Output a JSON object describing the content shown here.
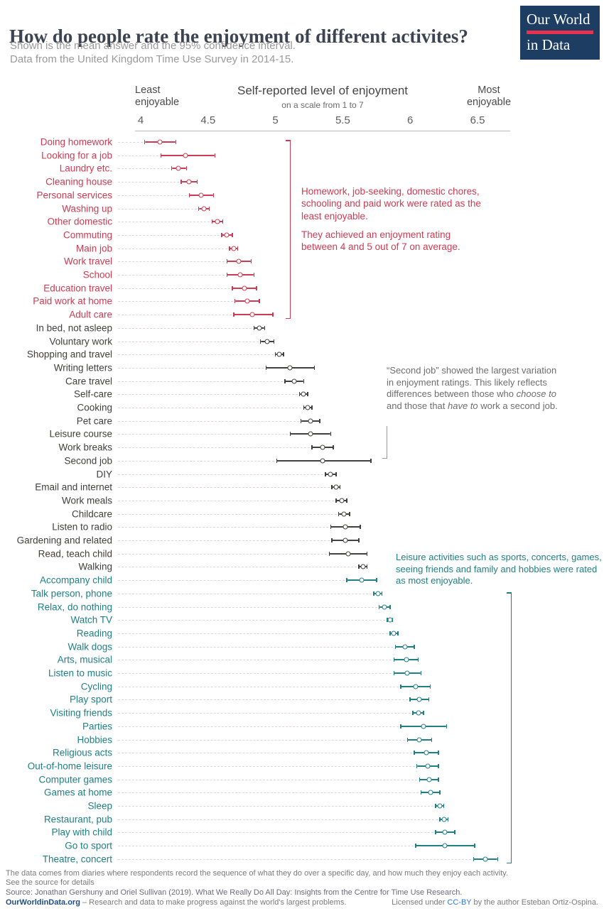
{
  "header": {
    "title": "How do people rate the enjoyment of different activites?",
    "subtitle1": "Shown is the mean answer and the 95% confidence interval.",
    "subtitle2": "Data from the United Kingdom Time Use Survey in 2014-15.",
    "logo_line1": "Our World",
    "logo_line2": "in Data"
  },
  "axis": {
    "title": "Self-reported level of enjoyment",
    "subtitle": "on a scale from 1 to 7",
    "least_line1": "Least",
    "least_line2": "enjoyable",
    "most_line1": "Most",
    "most_line2": "enjoyable",
    "ticks": [
      "4",
      "4.5",
      "5",
      "5.5",
      "6",
      "6.5"
    ],
    "xmin": 4,
    "xmax": 6.8
  },
  "colors": {
    "least": "#cf3b52",
    "mid": "#41403e",
    "most": "#1f7f85",
    "leader_line": "#ddd3e2",
    "logo_bg": "#1d3d63",
    "logo_bar": "#e8304f",
    "annotation_gray": "#6e6e6e"
  },
  "annotations": {
    "least_text1": "Homework, job-seeking, domestic chores, schooling and paid work were rated as the least enjoyable.",
    "least_text2": "They achieved an enjoyment rating between 4 and 5 out of 7 on average.",
    "second_job_part1": "“Second job” showed the largest variation in enjoyment ratings. This likely reflects differences between those who ",
    "second_job_italic1": "choose to",
    "second_job_part2": " and those that ",
    "second_job_italic2": "have to",
    "second_job_part3": " work a second job.",
    "most_text": "Leisure activities such as sports, concerts, games, seeing friends and family and hobbies were rated as most enjoyable."
  },
  "chart_data": {
    "type": "scatter",
    "marker": "open dot (mean) with 95% confidence interval bar",
    "title": "How do people rate the enjoyment of different activites?",
    "xlabel": "Self-reported level of enjoyment (on a scale from 1 to 7)",
    "xlim": [
      4,
      6.8
    ],
    "grid": false,
    "legend_position": "none",
    "rows": [
      {
        "label": "Doing homework",
        "group": "least",
        "mean": 4.14,
        "lo": 4.03,
        "hi": 4.26
      },
      {
        "label": "Looking for a job",
        "group": "least",
        "mean": 4.33,
        "lo": 4.15,
        "hi": 4.55
      },
      {
        "label": "Laundry etc.",
        "group": "least",
        "mean": 4.28,
        "lo": 4.23,
        "hi": 4.34
      },
      {
        "label": "Cleaning house",
        "group": "least",
        "mean": 4.36,
        "lo": 4.3,
        "hi": 4.42
      },
      {
        "label": "Personal services",
        "group": "least",
        "mean": 4.45,
        "lo": 4.36,
        "hi": 4.54
      },
      {
        "label": "Washing up",
        "group": "least",
        "mean": 4.47,
        "lo": 4.43,
        "hi": 4.51
      },
      {
        "label": "Other domestic",
        "group": "least",
        "mean": 4.57,
        "lo": 4.53,
        "hi": 4.61
      },
      {
        "label": "Commuting",
        "group": "least",
        "mean": 4.64,
        "lo": 4.6,
        "hi": 4.68
      },
      {
        "label": "Main job",
        "group": "least",
        "mean": 4.69,
        "lo": 4.66,
        "hi": 4.72
      },
      {
        "label": "Work travel",
        "group": "least",
        "mean": 4.73,
        "lo": 4.64,
        "hi": 4.82
      },
      {
        "label": "School",
        "group": "least",
        "mean": 4.74,
        "lo": 4.64,
        "hi": 4.84
      },
      {
        "label": "Education travel",
        "group": "least",
        "mean": 4.77,
        "lo": 4.68,
        "hi": 4.86
      },
      {
        "label": "Paid work at home",
        "group": "least",
        "mean": 4.79,
        "lo": 4.7,
        "hi": 4.88
      },
      {
        "label": "Adult care",
        "group": "least",
        "mean": 4.83,
        "lo": 4.69,
        "hi": 4.98
      },
      {
        "label": "In bed, not asleep",
        "group": "mid",
        "mean": 4.88,
        "lo": 4.84,
        "hi": 4.92
      },
      {
        "label": "Voluntary work",
        "group": "mid",
        "mean": 4.94,
        "lo": 4.89,
        "hi": 4.99
      },
      {
        "label": "Shopping and travel",
        "group": "mid",
        "mean": 5.03,
        "lo": 5.0,
        "hi": 5.06
      },
      {
        "label": "Writing letters",
        "group": "mid",
        "mean": 5.11,
        "lo": 4.93,
        "hi": 5.29
      },
      {
        "label": "Care travel",
        "group": "mid",
        "mean": 5.14,
        "lo": 5.07,
        "hi": 5.21
      },
      {
        "label": "Self-care",
        "group": "mid",
        "mean": 5.21,
        "lo": 5.18,
        "hi": 5.24
      },
      {
        "label": "Cooking",
        "group": "mid",
        "mean": 5.24,
        "lo": 5.21,
        "hi": 5.27
      },
      {
        "label": "Pet care",
        "group": "mid",
        "mean": 5.26,
        "lo": 5.19,
        "hi": 5.33
      },
      {
        "label": "Leisure course",
        "group": "mid",
        "mean": 5.26,
        "lo": 5.11,
        "hi": 5.41
      },
      {
        "label": "Work breaks",
        "group": "mid",
        "mean": 5.35,
        "lo": 5.27,
        "hi": 5.43
      },
      {
        "label": "Second job",
        "group": "mid",
        "mean": 5.35,
        "lo": 5.01,
        "hi": 5.71
      },
      {
        "label": "DIY",
        "group": "mid",
        "mean": 5.41,
        "lo": 5.37,
        "hi": 5.45
      },
      {
        "label": "Email and internet",
        "group": "mid",
        "mean": 5.45,
        "lo": 5.42,
        "hi": 5.48
      },
      {
        "label": "Work meals",
        "group": "mid",
        "mean": 5.49,
        "lo": 5.45,
        "hi": 5.53
      },
      {
        "label": "Childcare",
        "group": "mid",
        "mean": 5.51,
        "lo": 5.47,
        "hi": 5.55
      },
      {
        "label": "Listen to radio",
        "group": "mid",
        "mean": 5.52,
        "lo": 5.41,
        "hi": 5.63
      },
      {
        "label": "Gardening and related",
        "group": "mid",
        "mean": 5.52,
        "lo": 5.42,
        "hi": 5.62
      },
      {
        "label": "Read, teach child",
        "group": "mid",
        "mean": 5.54,
        "lo": 5.4,
        "hi": 5.68
      },
      {
        "label": "Walking",
        "group": "mid",
        "mean": 5.65,
        "lo": 5.62,
        "hi": 5.68
      },
      {
        "label": "Accompany child",
        "group": "most",
        "mean": 5.64,
        "lo": 5.53,
        "hi": 5.75
      },
      {
        "label": "Talk person, phone",
        "group": "most",
        "mean": 5.76,
        "lo": 5.73,
        "hi": 5.79
      },
      {
        "label": "Relax, do nothing",
        "group": "most",
        "mean": 5.81,
        "lo": 5.77,
        "hi": 5.85
      },
      {
        "label": "Watch TV",
        "group": "most",
        "mean": 5.85,
        "lo": 5.83,
        "hi": 5.87
      },
      {
        "label": "Reading",
        "group": "most",
        "mean": 5.88,
        "lo": 5.85,
        "hi": 5.91
      },
      {
        "label": "Walk dogs",
        "group": "most",
        "mean": 5.96,
        "lo": 5.89,
        "hi": 6.03
      },
      {
        "label": "Arts, musical",
        "group": "most",
        "mean": 5.97,
        "lo": 5.88,
        "hi": 6.06
      },
      {
        "label": "Listen to music",
        "group": "most",
        "mean": 5.98,
        "lo": 5.88,
        "hi": 6.08
      },
      {
        "label": "Cycling",
        "group": "most",
        "mean": 6.04,
        "lo": 5.93,
        "hi": 6.15
      },
      {
        "label": "Play sport",
        "group": "most",
        "mean": 6.07,
        "lo": 6.0,
        "hi": 6.14
      },
      {
        "label": "Visiting friends",
        "group": "most",
        "mean": 6.06,
        "lo": 6.02,
        "hi": 6.1
      },
      {
        "label": "Parties",
        "group": "most",
        "mean": 6.1,
        "lo": 5.93,
        "hi": 6.27
      },
      {
        "label": "Hobbies",
        "group": "most",
        "mean": 6.07,
        "lo": 5.98,
        "hi": 6.16
      },
      {
        "label": "Religious acts",
        "group": "most",
        "mean": 6.12,
        "lo": 6.03,
        "hi": 6.21
      },
      {
        "label": "Out-of-home leisure",
        "group": "most",
        "mean": 6.13,
        "lo": 6.05,
        "hi": 6.21
      },
      {
        "label": "Computer games",
        "group": "most",
        "mean": 6.14,
        "lo": 6.07,
        "hi": 6.21
      },
      {
        "label": "Games at home",
        "group": "most",
        "mean": 6.15,
        "lo": 6.08,
        "hi": 6.22
      },
      {
        "label": "Sleep",
        "group": "most",
        "mean": 6.22,
        "lo": 6.19,
        "hi": 6.25
      },
      {
        "label": "Restaurant, pub",
        "group": "most",
        "mean": 6.25,
        "lo": 6.22,
        "hi": 6.28
      },
      {
        "label": "Play with child",
        "group": "most",
        "mean": 6.26,
        "lo": 6.19,
        "hi": 6.33
      },
      {
        "label": "Go to sport",
        "group": "most",
        "mean": 6.26,
        "lo": 6.04,
        "hi": 6.48
      },
      {
        "label": "Theatre, concert",
        "group": "most",
        "mean": 6.56,
        "lo": 6.47,
        "hi": 6.65
      }
    ]
  },
  "footer": {
    "note1": "The data comes from diaries where respondents record the sequence of what they do over a specific day, and how much they enjoy each activity.",
    "note2": "See the source for details",
    "source": "Source: Jonathan Gershuny and Oriel Sullivan (2019). What We Really Do All Day: Insights from the Centre for Time Use Research.",
    "site": "OurWorldinData.org",
    "site_tagline": " – Research and data to make progress against the world's largest problems.",
    "license_pre": "Licensed under ",
    "license_link": "CC-BY",
    "license_post": " by the author Esteban Ortiz-Ospina."
  }
}
